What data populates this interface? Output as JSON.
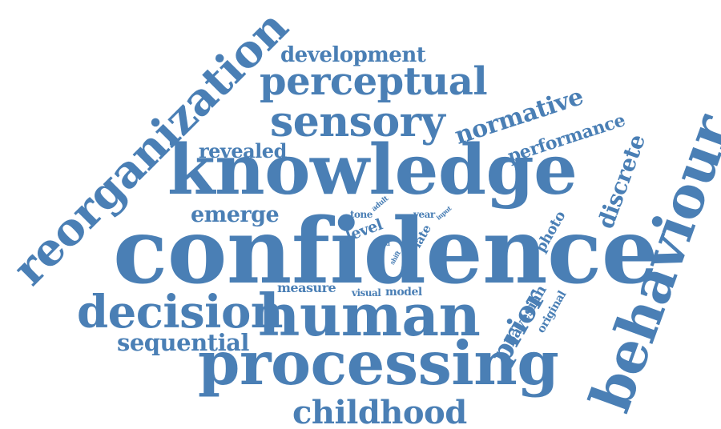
{
  "cloud": {
    "color": "#4a7fb5",
    "words": {
      "confidence": "confidence",
      "knowledge": "knowledge",
      "processing": "processing",
      "human": "human",
      "behaviour": "behaviour",
      "reorganization": "reorganization",
      "perceptual": "perceptual",
      "sensory": "sensory",
      "decision": "decision",
      "childhood": "childhood",
      "development": "development",
      "normative": "normative",
      "performance": "performance",
      "discrete": "discrete",
      "revealed": "revealed",
      "emerge": "emerge",
      "sequential": "sequential",
      "prior": "prior",
      "bayesian": "bayesian",
      "original": "original",
      "photo": "photo",
      "measure": "measure",
      "visual": "visual",
      "model": "model",
      "level": "level",
      "tone": "tone",
      "adult": "adult",
      "year": "year",
      "input": "input",
      "late": "late",
      "old": "old",
      "shift": "shift"
    }
  }
}
